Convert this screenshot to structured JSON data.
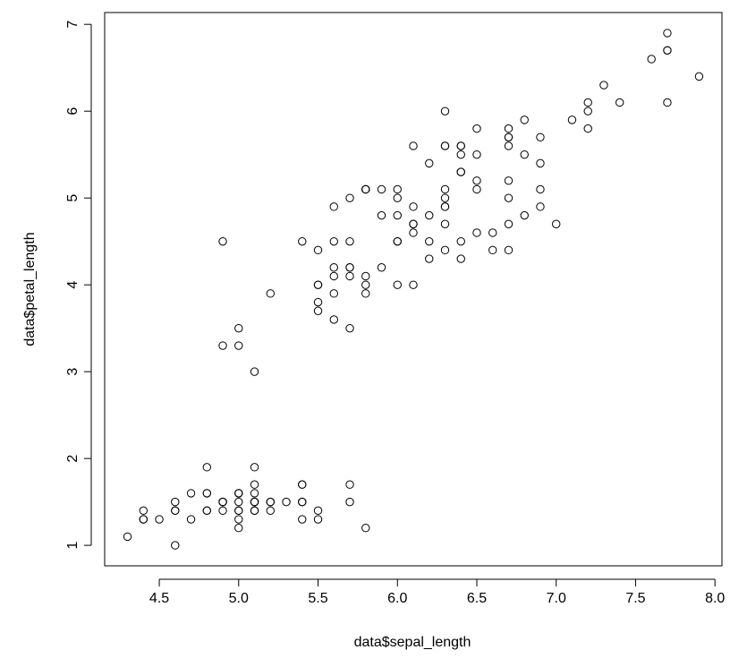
{
  "chart_data": {
    "type": "scatter",
    "x_label": "data$sepal_length",
    "y_label": "data$petal_length",
    "xlim": [
      4.156,
      8.044
    ],
    "ylim": [
      0.764,
      7.136
    ],
    "xticks": [
      4.5,
      {
        "value": 5,
        "label": "5.0"
      },
      5.5,
      {
        "value": 6,
        "label": "6.0"
      },
      6.5,
      {
        "value": 7,
        "label": "7.0"
      },
      7.5,
      {
        "value": 8,
        "label": "8.0"
      }
    ],
    "yticks": [
      1,
      2,
      3,
      4,
      5,
      6,
      7
    ],
    "color": "#000000",
    "x": [
      5.1,
      4.9,
      4.7,
      4.6,
      5.0,
      5.4,
      4.6,
      5.0,
      4.4,
      4.9,
      5.4,
      4.8,
      4.8,
      4.3,
      5.8,
      5.7,
      5.4,
      5.1,
      5.7,
      5.1,
      5.4,
      5.1,
      4.6,
      5.1,
      4.8,
      5.0,
      5.0,
      5.2,
      5.2,
      4.7,
      4.8,
      5.4,
      5.2,
      5.5,
      4.9,
      5.0,
      5.5,
      4.9,
      4.4,
      5.1,
      5.0,
      4.5,
      4.4,
      5.0,
      5.1,
      4.8,
      5.1,
      4.6,
      5.3,
      5.0,
      7.0,
      6.4,
      6.9,
      5.5,
      6.5,
      5.7,
      6.3,
      4.9,
      6.6,
      5.2,
      5.0,
      5.9,
      6.0,
      6.1,
      5.6,
      6.7,
      5.6,
      5.8,
      6.2,
      5.6,
      5.9,
      6.1,
      6.3,
      6.1,
      6.4,
      6.6,
      6.8,
      6.7,
      6.0,
      5.7,
      5.5,
      5.5,
      5.8,
      6.0,
      5.4,
      6.0,
      6.7,
      6.3,
      5.6,
      5.5,
      5.5,
      6.1,
      5.8,
      5.0,
      5.6,
      5.7,
      5.7,
      6.2,
      5.1,
      5.7,
      6.3,
      5.8,
      7.1,
      6.3,
      6.5,
      7.6,
      4.9,
      7.3,
      6.7,
      7.2,
      6.5,
      6.4,
      6.8,
      5.7,
      5.8,
      6.4,
      6.5,
      7.7,
      7.7,
      6.0,
      6.9,
      5.6,
      7.7,
      6.3,
      6.7,
      7.2,
      6.2,
      6.1,
      6.4,
      7.2,
      7.4,
      7.9,
      6.4,
      6.3,
      6.1,
      7.7,
      6.3,
      6.4,
      6.0,
      6.9,
      6.7,
      6.9,
      5.8,
      6.8,
      6.7,
      6.7,
      6.3,
      6.5,
      6.2,
      5.9
    ],
    "values": [
      1.4,
      1.4,
      1.3,
      1.5,
      1.4,
      1.7,
      1.4,
      1.5,
      1.4,
      1.5,
      1.5,
      1.6,
      1.4,
      1.1,
      1.2,
      1.5,
      1.3,
      1.4,
      1.7,
      1.5,
      1.7,
      1.5,
      1.0,
      1.7,
      1.9,
      1.6,
      1.6,
      1.5,
      1.4,
      1.6,
      1.6,
      1.5,
      1.5,
      1.4,
      1.5,
      1.2,
      1.3,
      1.5,
      1.3,
      1.5,
      1.3,
      1.3,
      1.3,
      1.6,
      1.9,
      1.4,
      1.6,
      1.4,
      1.5,
      1.4,
      4.7,
      4.5,
      4.9,
      4.0,
      4.6,
      4.5,
      4.7,
      3.3,
      4.6,
      3.9,
      3.5,
      4.2,
      4.0,
      4.7,
      3.6,
      4.4,
      4.5,
      4.1,
      4.5,
      3.9,
      4.8,
      4.0,
      4.9,
      4.7,
      4.3,
      4.4,
      4.8,
      5.0,
      4.5,
      3.5,
      3.8,
      3.7,
      3.9,
      5.1,
      4.5,
      4.5,
      4.7,
      4.4,
      4.1,
      4.0,
      4.4,
      4.6,
      4.0,
      3.3,
      4.2,
      4.2,
      4.2,
      4.3,
      3.0,
      4.1,
      6.0,
      5.1,
      5.9,
      5.6,
      5.8,
      6.6,
      4.5,
      6.3,
      5.8,
      6.1,
      5.1,
      5.3,
      5.5,
      5.0,
      5.1,
      5.3,
      5.5,
      6.7,
      6.9,
      5.0,
      5.7,
      4.9,
      6.7,
      4.9,
      5.7,
      6.0,
      4.8,
      4.9,
      5.6,
      5.8,
      6.1,
      6.4,
      5.6,
      5.1,
      5.6,
      6.1,
      5.6,
      5.5,
      4.8,
      5.4,
      5.6,
      5.1,
      5.1,
      5.9,
      5.7,
      5.2,
      5.0,
      5.2,
      5.4,
      5.1
    ]
  }
}
